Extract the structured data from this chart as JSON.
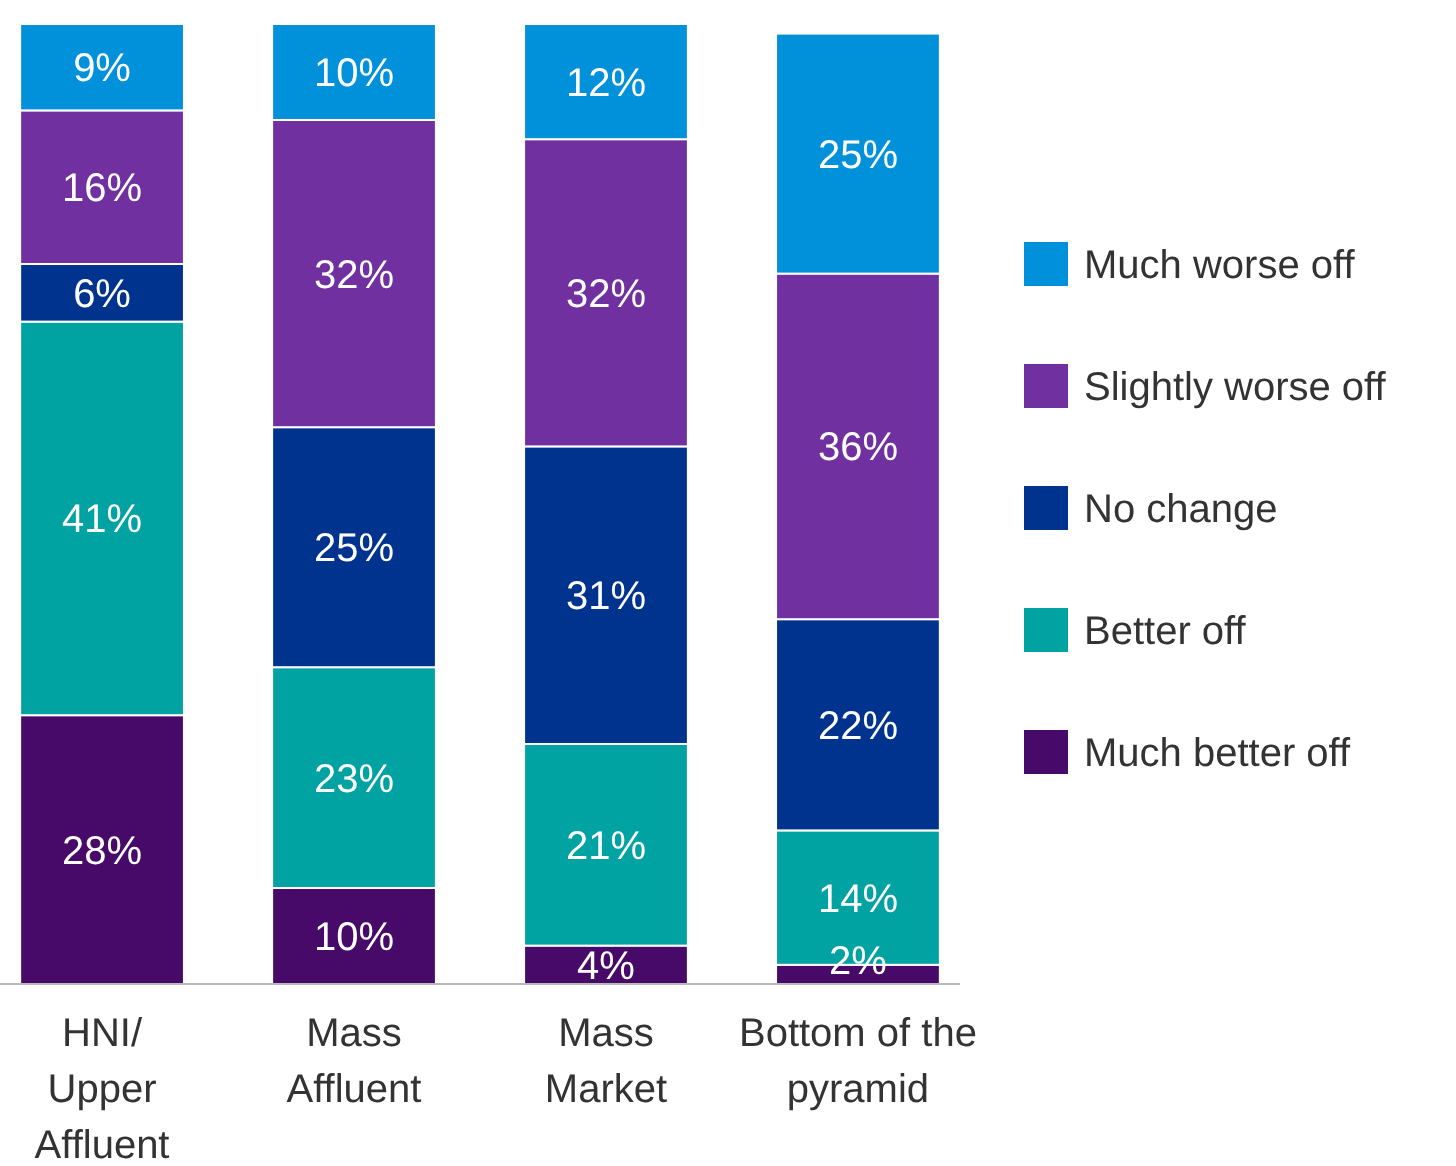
{
  "chart_data": {
    "type": "bar",
    "stacked": true,
    "legend": "right",
    "categories": [
      "HNI/ Upper Affluent",
      "Mass Affluent",
      "Mass Market",
      "Bottom of the pyramid"
    ],
    "series": [
      {
        "name": "Much better off",
        "color": "#470a68",
        "values": [
          28,
          10,
          4,
          2
        ],
        "value_labels": [
          "28%",
          "10%",
          "4%",
          "2%"
        ]
      },
      {
        "name": "Better off",
        "color": "#00a3a1",
        "values": [
          41,
          23,
          21,
          14
        ],
        "value_labels": [
          "41%",
          "23%",
          "21%",
          "14%"
        ]
      },
      {
        "name": "No change",
        "color": "#00338d",
        "values": [
          6,
          25,
          31,
          22
        ],
        "value_labels": [
          "6%",
          "25%",
          "31%",
          "22%"
        ]
      },
      {
        "name": "Slightly worse off",
        "color": "#7030a0",
        "values": [
          16,
          32,
          32,
          36
        ],
        "value_labels": [
          "16%",
          "32%",
          "32%",
          "36%"
        ]
      },
      {
        "name": "Much worse off",
        "color": "#0091da",
        "values": [
          9,
          10,
          12,
          25
        ],
        "value_labels": [
          "9%",
          "10%",
          "12%",
          "25%"
        ]
      }
    ]
  }
}
